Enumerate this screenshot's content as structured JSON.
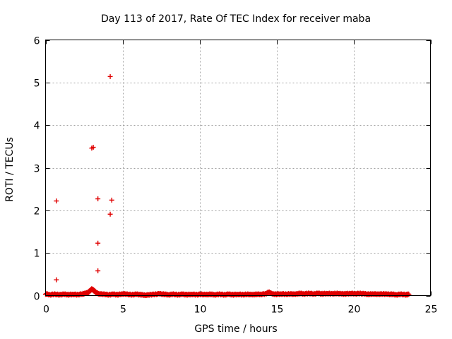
{
  "chart_data": {
    "type": "scatter",
    "title": "Day 113 of 2017, Rate Of TEC Index for receiver maba",
    "xlabel": "GPS time / hours",
    "ylabel": "ROTI / TECUs",
    "xlim": [
      0,
      25
    ],
    "ylim": [
      0,
      6
    ],
    "grid": true,
    "x_ticks": [
      0,
      5,
      10,
      15,
      20,
      25
    ],
    "y_ticks": [
      0,
      1,
      2,
      3,
      4,
      5,
      6
    ],
    "x_tick_labels": [
      "0",
      "5",
      "10",
      "15",
      "20",
      "25"
    ],
    "y_tick_labels": [
      "0",
      "1",
      "2",
      "3",
      "4",
      "5",
      "6"
    ],
    "marker": "+",
    "color": "#e00000",
    "outliers": [
      {
        "x": 0.7,
        "y": 0.37
      },
      {
        "x": 0.7,
        "y": 2.22
      },
      {
        "x": 3.0,
        "y": 3.46
      },
      {
        "x": 3.1,
        "y": 3.48
      },
      {
        "x": 3.4,
        "y": 2.27
      },
      {
        "x": 3.4,
        "y": 1.23
      },
      {
        "x": 3.4,
        "y": 0.58
      },
      {
        "x": 4.2,
        "y": 5.14
      },
      {
        "x": 4.3,
        "y": 2.24
      },
      {
        "x": 4.2,
        "y": 1.91
      }
    ],
    "baseline": {
      "description_range_hours": [
        0,
        23.6
      ],
      "typical_roti": 0.03,
      "points": [
        [
          0.0,
          0.04
        ],
        [
          0.3,
          0.02
        ],
        [
          0.6,
          0.03
        ],
        [
          0.9,
          0.02
        ],
        [
          1.2,
          0.03
        ],
        [
          1.5,
          0.02
        ],
        [
          1.8,
          0.03
        ],
        [
          2.1,
          0.02
        ],
        [
          2.4,
          0.04
        ],
        [
          2.6,
          0.05
        ],
        [
          2.8,
          0.08
        ],
        [
          2.9,
          0.12
        ],
        [
          3.0,
          0.15
        ],
        [
          3.1,
          0.13
        ],
        [
          3.2,
          0.1
        ],
        [
          3.3,
          0.06
        ],
        [
          3.5,
          0.04
        ],
        [
          3.8,
          0.03
        ],
        [
          4.1,
          0.02
        ],
        [
          4.4,
          0.03
        ],
        [
          4.7,
          0.02
        ],
        [
          5.0,
          0.04
        ],
        [
          5.3,
          0.03
        ],
        [
          5.6,
          0.02
        ],
        [
          5.9,
          0.03
        ],
        [
          6.2,
          0.02
        ],
        [
          6.5,
          0.01
        ],
        [
          6.8,
          0.02
        ],
        [
          7.1,
          0.03
        ],
        [
          7.4,
          0.04
        ],
        [
          7.7,
          0.03
        ],
        [
          8.0,
          0.02
        ],
        [
          8.3,
          0.03
        ],
        [
          8.6,
          0.02
        ],
        [
          8.9,
          0.03
        ],
        [
          9.2,
          0.02
        ],
        [
          9.5,
          0.03
        ],
        [
          9.8,
          0.02
        ],
        [
          10.1,
          0.03
        ],
        [
          10.4,
          0.02
        ],
        [
          10.7,
          0.03
        ],
        [
          11.0,
          0.02
        ],
        [
          11.3,
          0.03
        ],
        [
          11.6,
          0.02
        ],
        [
          11.9,
          0.03
        ],
        [
          12.2,
          0.02
        ],
        [
          12.5,
          0.03
        ],
        [
          12.8,
          0.02
        ],
        [
          13.1,
          0.03
        ],
        [
          13.4,
          0.02
        ],
        [
          13.7,
          0.03
        ],
        [
          14.0,
          0.03
        ],
        [
          14.3,
          0.04
        ],
        [
          14.5,
          0.08
        ],
        [
          14.7,
          0.04
        ],
        [
          15.0,
          0.03
        ],
        [
          15.3,
          0.04
        ],
        [
          15.6,
          0.03
        ],
        [
          15.9,
          0.04
        ],
        [
          16.2,
          0.03
        ],
        [
          16.5,
          0.05
        ],
        [
          16.8,
          0.04
        ],
        [
          17.1,
          0.05
        ],
        [
          17.4,
          0.04
        ],
        [
          17.7,
          0.05
        ],
        [
          18.0,
          0.04
        ],
        [
          18.3,
          0.05
        ],
        [
          18.6,
          0.04
        ],
        [
          18.9,
          0.05
        ],
        [
          19.2,
          0.04
        ],
        [
          19.5,
          0.04
        ],
        [
          19.8,
          0.05
        ],
        [
          20.1,
          0.04
        ],
        [
          20.4,
          0.05
        ],
        [
          20.7,
          0.04
        ],
        [
          21.0,
          0.03
        ],
        [
          21.3,
          0.04
        ],
        [
          21.6,
          0.03
        ],
        [
          21.9,
          0.04
        ],
        [
          22.2,
          0.03
        ],
        [
          22.5,
          0.03
        ],
        [
          22.8,
          0.02
        ],
        [
          23.1,
          0.03
        ],
        [
          23.4,
          0.02
        ],
        [
          23.6,
          0.03
        ]
      ]
    }
  }
}
